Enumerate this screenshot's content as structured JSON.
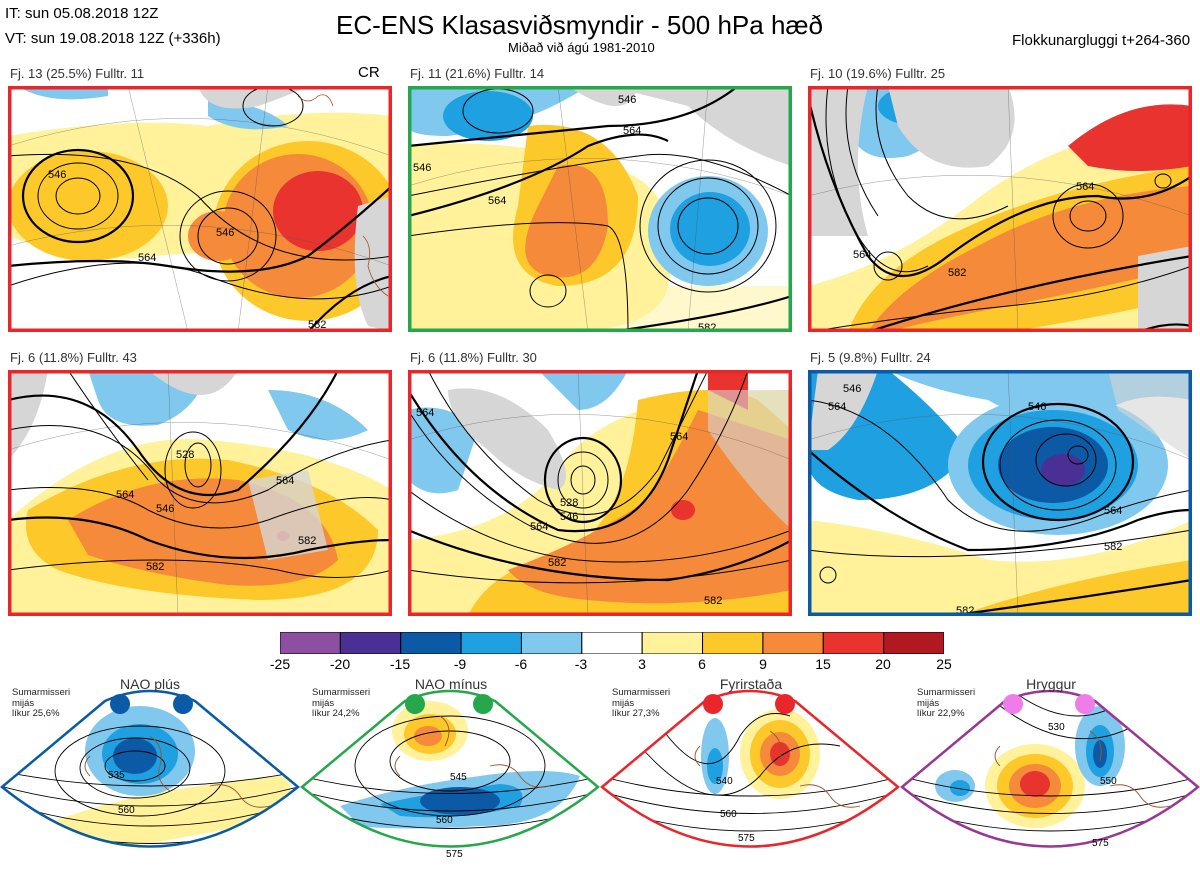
{
  "header": {
    "it_line": "IT: sun 05.08.2018 12Z",
    "vt_line": "VT: sun 19.08.2018 12Z  (+336h)",
    "title": "EC-ENS Klasasviðsmyndir - 500 hPa hæð",
    "subtitle": "Miðað við ágú 1981-2010",
    "window": "Flokkunargluggi t+264-360"
  },
  "colors": {
    "red_frame": "#e8262b",
    "green_frame": "#25a74b",
    "blue_frame": "#0a5aa5",
    "purple_frame": "#973894",
    "land": "#d6d6d6",
    "coast": "#a0522d"
  },
  "clusters": [
    {
      "label": "Fj. 13 (25.5%)   Fulltr. 11",
      "frame": "red",
      "tag": "CR"
    },
    {
      "label": "Fj. 11 (21.6%)   Fulltr. 14",
      "frame": "green",
      "tag": ""
    },
    {
      "label": "Fj. 10 (19.6%)   Fulltr. 25",
      "frame": "red",
      "tag": ""
    },
    {
      "label": "Fj. 6 (11.8%)    Fulltr. 43",
      "frame": "red",
      "tag": ""
    },
    {
      "label": "Fj. 6 (11.8%)    Fulltr. 30",
      "frame": "red",
      "tag": ""
    },
    {
      "label": "Fj. 5 (9.8%)    Fulltr. 24",
      "frame": "blue",
      "tag": ""
    }
  ],
  "colorbar": {
    "ticks": [
      "-25",
      "-20",
      "-15",
      "-9",
      "-6",
      "-3",
      "3",
      "6",
      "9",
      "15",
      "20",
      "25"
    ],
    "colors": [
      "#8c4fa1",
      "#4a2f95",
      "#0c5aa6",
      "#1fa0e0",
      "#80c8ee",
      "#ffffff",
      "#fff29a",
      "#fdc82a",
      "#f58a3a",
      "#e8332e",
      "#b11820"
    ]
  },
  "regimes": [
    {
      "name": "NAO plús",
      "season": "Sumarmisseri",
      "avg": "mijás",
      "prob": "líkur 25,6%",
      "frame": "blue",
      "dot_color": "#0a5aa5",
      "contours": [
        "535",
        "560"
      ]
    },
    {
      "name": "NAO mínus",
      "season": "Sumarmisseri",
      "avg": "mijás",
      "prob": "líkur 24,2%",
      "frame": "green",
      "dot_color": "#25a74b",
      "contours": [
        "545",
        "560",
        "575"
      ]
    },
    {
      "name": "Fyrirstaða",
      "season": "Sumarmisseri",
      "avg": "mijás",
      "prob": "líkur 27,3%",
      "frame": "red",
      "dot_color": "#e8262b",
      "contours": [
        "540",
        "560",
        "575"
      ]
    },
    {
      "name": "Hryggur",
      "season": "Sumarmisseri",
      "avg": "mijás",
      "prob": "líkur 22,9%",
      "frame": "purple",
      "dot_color": "#ef7de9",
      "contours": [
        "530",
        "550",
        "575"
      ]
    }
  ],
  "map_contours": [
    [
      "546",
      "564",
      "546",
      "582"
    ],
    [
      "546",
      "564",
      "546",
      "564",
      "582"
    ],
    [
      "564",
      "564",
      "582"
    ],
    [
      "528",
      "546",
      "564",
      "564",
      "582",
      "582"
    ],
    [
      "564",
      "528",
      "546",
      "564",
      "582",
      "564",
      "582"
    ],
    [
      "546",
      "564",
      "546",
      "564",
      "582",
      "582"
    ]
  ]
}
